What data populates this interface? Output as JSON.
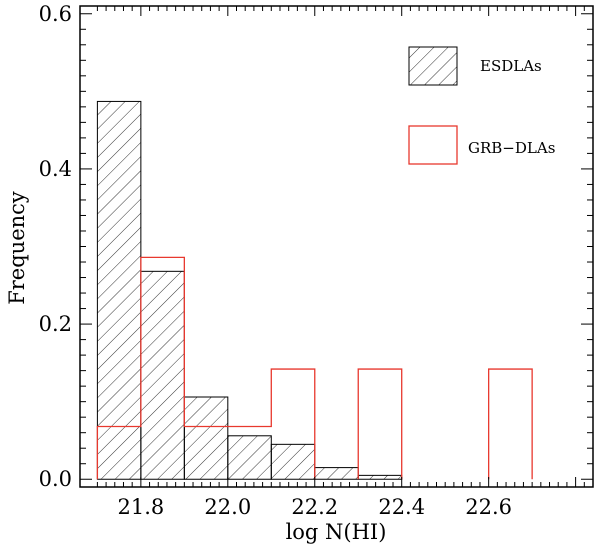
{
  "chart_data": {
    "type": "bar",
    "title": "",
    "xlabel": "log N(HI)",
    "ylabel": "Frequency",
    "xlim": [
      21.66,
      22.84
    ],
    "ylim": [
      -0.01,
      0.61
    ],
    "bin_edges": [
      21.7,
      21.8,
      21.9,
      22.0,
      22.1,
      22.2,
      22.3,
      22.4,
      22.5,
      22.6,
      22.7
    ],
    "x_ticks": [
      "21.8",
      "22.0",
      "22.2",
      "22.4",
      "22.6"
    ],
    "y_ticks": [
      "0.0",
      "0.2",
      "0.4",
      "0.6"
    ],
    "grid": false,
    "legend_position": "top-right",
    "series": [
      {
        "name": "ESDLAs",
        "style": "hatched",
        "color": "#000000",
        "values": [
          0.487,
          0.268,
          0.106,
          0.056,
          0.045,
          0.015,
          0.005,
          0.0,
          0.0,
          0.0
        ]
      },
      {
        "name": "GRB−DLAs",
        "style": "outline",
        "color": "#e8382e",
        "values": [
          0.068,
          0.286,
          0.068,
          0.068,
          0.142,
          0.0,
          0.142,
          0.0,
          0.0,
          0.142
        ]
      }
    ]
  }
}
